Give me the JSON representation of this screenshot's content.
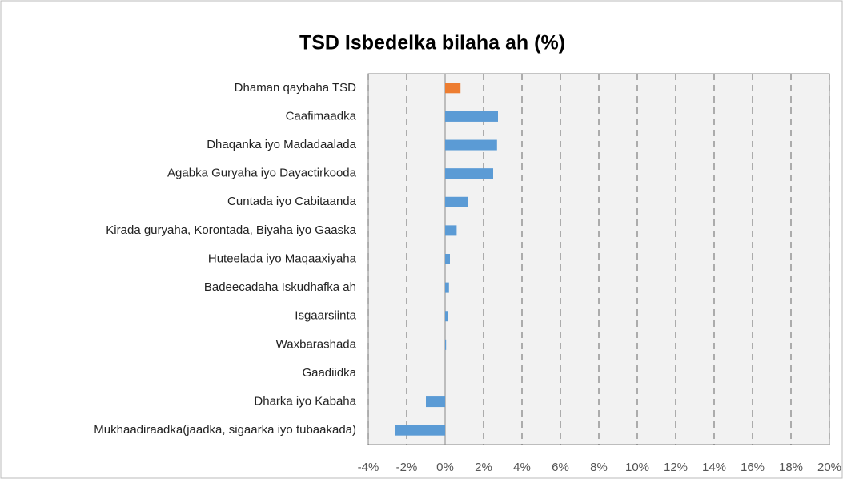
{
  "chart_data": {
    "type": "barh",
    "title": "TSD Isbedelka bilaha ah (%)",
    "categories": [
      "Dhaman qaybaha TSD",
      "Caafimaadka",
      "Dhaqanka iyo Madadaalada",
      "Agabka Guryaha iyo Dayactirkooda",
      "Cuntada iyo Cabitaanda",
      "Kirada guryaha, Korontada, Biyaha iyo Gaaska",
      "Huteelada iyo Maqaaxiyaha",
      "Badeecadaha Iskudhafka ah",
      "Isgaarsiinta",
      "Waxbarashada",
      "Gaadiidka",
      "Dharka iyo Kabaha",
      "Mukhaadiraadka(jaadka, sigaarka iyo tubaakada)"
    ],
    "values": [
      0.8,
      2.75,
      2.7,
      2.5,
      1.2,
      0.6,
      0.25,
      0.2,
      0.15,
      0.05,
      0,
      -1.0,
      -2.6
    ],
    "colors": [
      "#ed7d31",
      "#5b9bd5",
      "#5b9bd5",
      "#5b9bd5",
      "#5b9bd5",
      "#5b9bd5",
      "#5b9bd5",
      "#5b9bd5",
      "#5b9bd5",
      "#5b9bd5",
      "#5b9bd5",
      "#5b9bd5",
      "#5b9bd5"
    ],
    "xlim": [
      -4,
      20
    ],
    "xticks": [
      {
        "value": -4,
        "label": "-4%"
      },
      {
        "value": -2,
        "label": "-2%"
      },
      {
        "value": 0,
        "label": "0%"
      },
      {
        "value": 2,
        "label": "2%"
      },
      {
        "value": 4,
        "label": "4%"
      },
      {
        "value": 6,
        "label": "6%"
      },
      {
        "value": 8,
        "label": "8%"
      },
      {
        "value": 10,
        "label": "10%"
      },
      {
        "value": 12,
        "label": "12%"
      },
      {
        "value": 14,
        "label": "14%"
      },
      {
        "value": 16,
        "label": "16%"
      },
      {
        "value": 18,
        "label": "18%"
      },
      {
        "value": 20,
        "label": "20%"
      }
    ],
    "grid": true
  }
}
